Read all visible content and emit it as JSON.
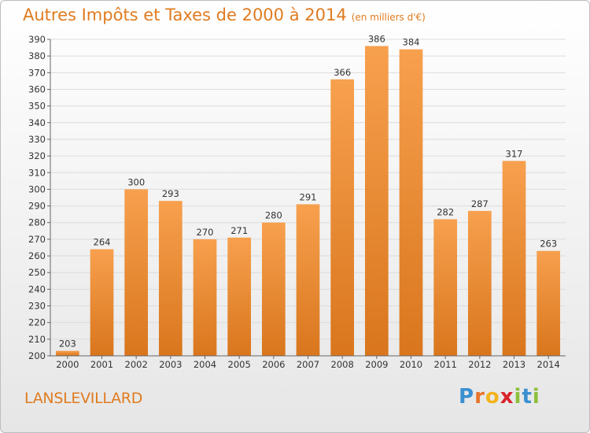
{
  "title": "Autres Impôts et Taxes de 2000 à 2014",
  "subtitle": "(en milliers d'€)",
  "place": "LANSLEVILLARD",
  "logo": "Proxiti",
  "colors": {
    "bar_top": "#f7a04e",
    "bar_bottom": "#d9761d",
    "accent": "#e07b1f"
  },
  "chart_data": {
    "type": "bar",
    "title": "Autres Impôts et Taxes de 2000 à 2014",
    "subtitle": "(en milliers d'€)",
    "categories": [
      "2000",
      "2001",
      "2002",
      "2003",
      "2004",
      "2005",
      "2006",
      "2007",
      "2008",
      "2009",
      "2010",
      "2011",
      "2012",
      "2013",
      "2014"
    ],
    "values": [
      203,
      264,
      300,
      293,
      270,
      271,
      280,
      291,
      366,
      386,
      384,
      282,
      287,
      317,
      263
    ],
    "ylim": [
      200,
      390
    ],
    "ytick_step": 10,
    "grid": true
  }
}
